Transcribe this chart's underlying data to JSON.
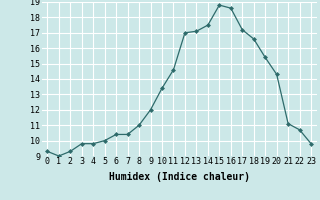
{
  "x": [
    0,
    1,
    2,
    3,
    4,
    5,
    6,
    7,
    8,
    9,
    10,
    11,
    12,
    13,
    14,
    15,
    16,
    17,
    18,
    19,
    20,
    21,
    22,
    23
  ],
  "y": [
    9.3,
    9.0,
    9.3,
    9.8,
    9.8,
    10.0,
    10.4,
    10.4,
    11.0,
    12.0,
    13.4,
    14.6,
    17.0,
    17.1,
    17.5,
    18.8,
    18.6,
    17.2,
    16.6,
    15.4,
    14.3,
    11.1,
    10.7,
    9.8
  ],
  "xlabel": "Humidex (Indice chaleur)",
  "ylim": [
    9,
    19
  ],
  "xlim": [
    -0.5,
    23.5
  ],
  "yticks": [
    9,
    10,
    11,
    12,
    13,
    14,
    15,
    16,
    17,
    18,
    19
  ],
  "xticks": [
    0,
    1,
    2,
    3,
    4,
    5,
    6,
    7,
    8,
    9,
    10,
    11,
    12,
    13,
    14,
    15,
    16,
    17,
    18,
    19,
    20,
    21,
    22,
    23
  ],
  "line_color": "#2e6b6b",
  "marker": "D",
  "marker_size": 2.0,
  "bg_color": "#cce8e8",
  "grid_color": "#ffffff",
  "xlabel_fontsize": 7,
  "tick_fontsize": 6
}
